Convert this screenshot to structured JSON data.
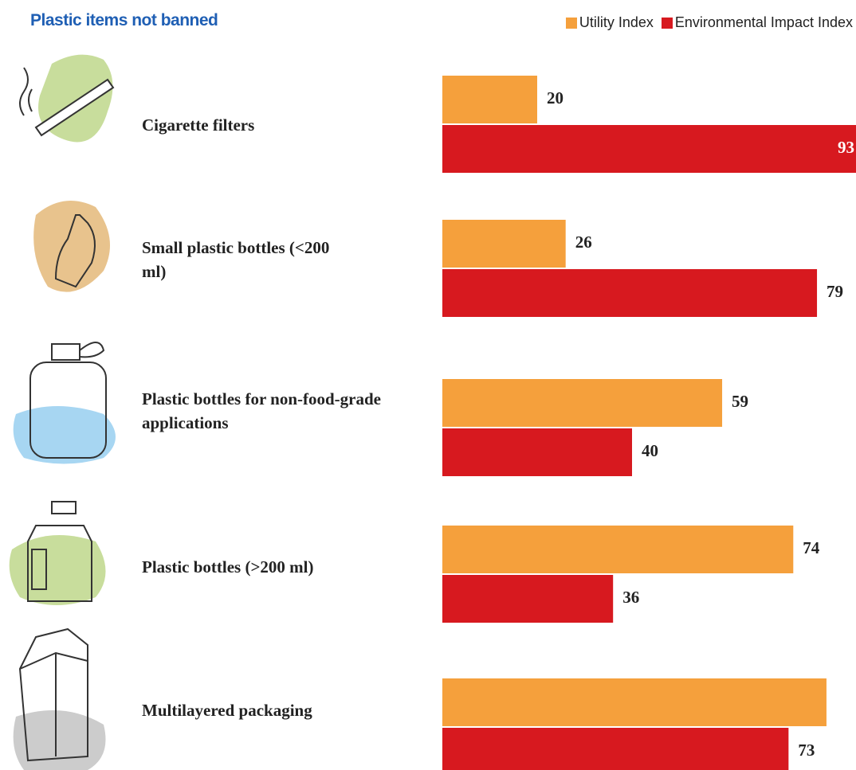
{
  "chart_data": {
    "type": "bar",
    "orientation": "horizontal",
    "title": "Plastic items not banned",
    "categories": [
      "Cigarette filters",
      "Small plastic bottles (<200 ml)",
      "Plastic bottles for non-food-grade applications",
      "Plastic bottles (>200 ml)",
      "Multilayered packaging"
    ],
    "series": [
      {
        "name": "Utility Index",
        "color": "#f5a03c",
        "values": [
          20,
          26,
          59,
          74,
          81
        ]
      },
      {
        "name": "Environmental Impact Index",
        "color": "#d7191f",
        "values": [
          93,
          79,
          40,
          36,
          73
        ]
      }
    ],
    "legend": "top-right"
  }
}
